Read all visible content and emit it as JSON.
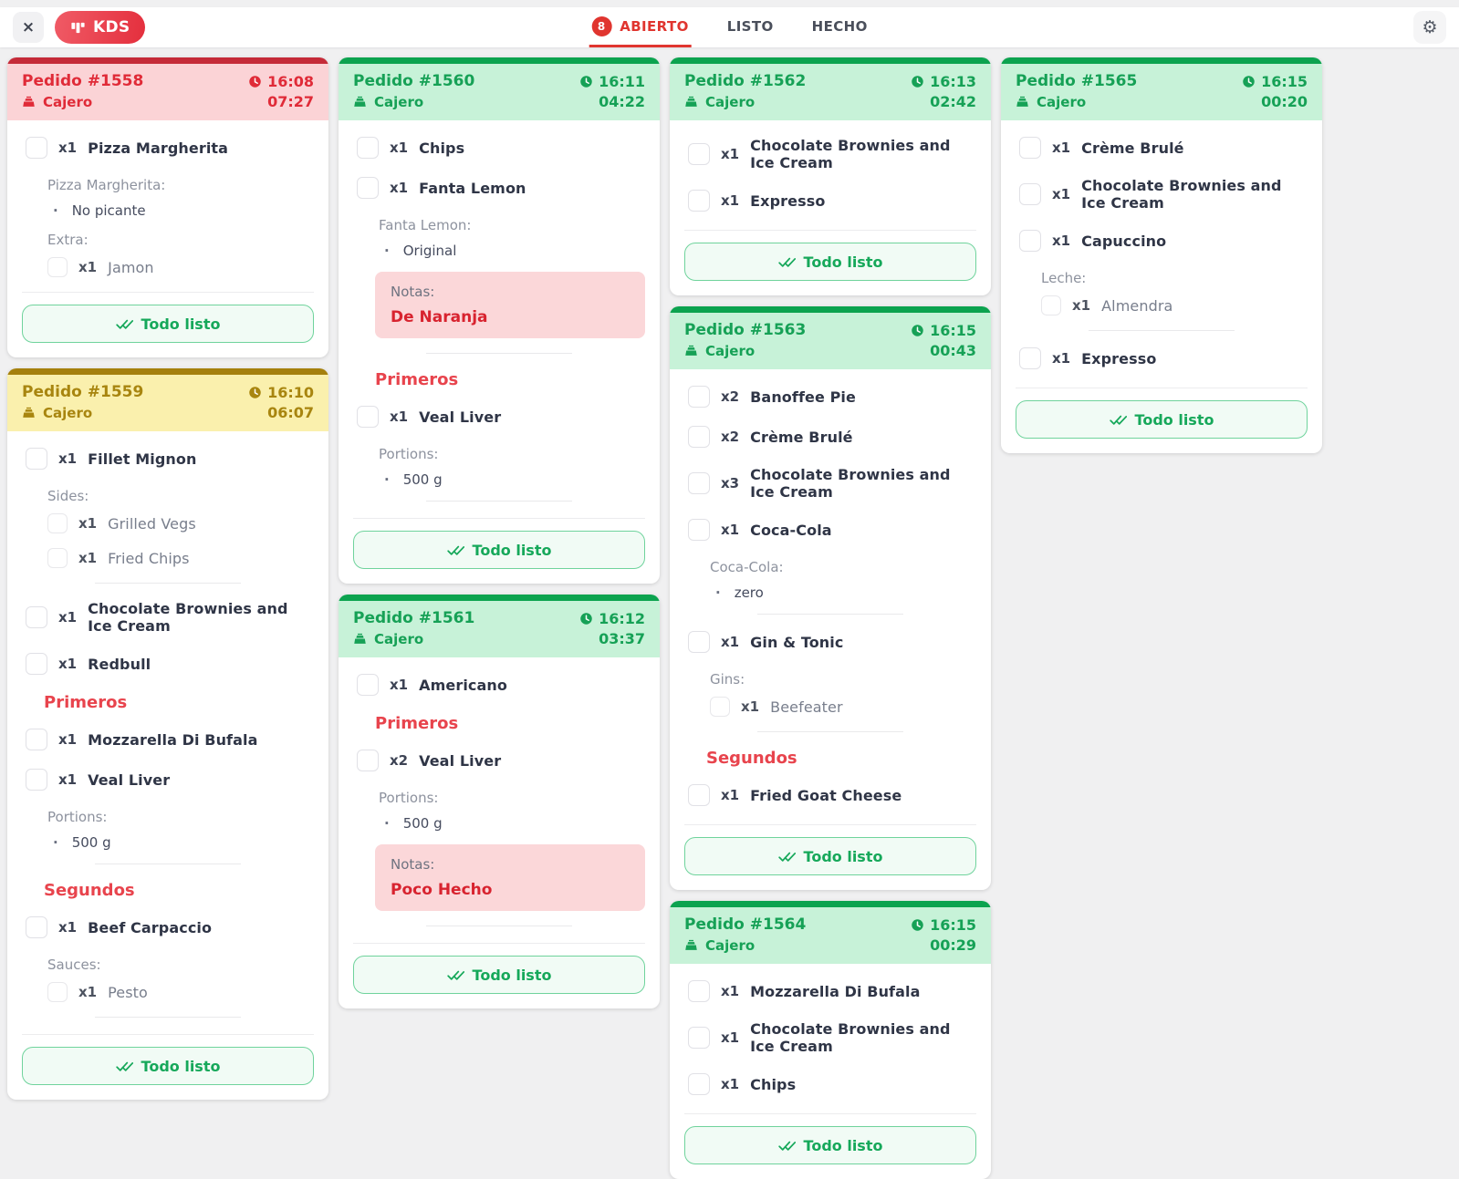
{
  "topbar": {
    "close_label": "×",
    "brand": "KDS",
    "settings_icon": "⚙",
    "tabs": [
      {
        "label": "ABIERTO",
        "badge": "8",
        "active": true
      },
      {
        "label": "LISTO"
      },
      {
        "label": "HECHO"
      }
    ]
  },
  "colors": {
    "brand_red": "#e73b48",
    "tab_active": "#e0352f",
    "heading_red": "#e8444d",
    "notes_bg": "#fbd7d9",
    "notes_text": "#d8232f",
    "ready_green": "#16a85a",
    "status": {
      "red": {
        "strip": "#c52b39",
        "bg": "#fbd3d6",
        "text": "#e02b38"
      },
      "yellow": {
        "strip": "#a5800d",
        "bg": "#faf0ad",
        "text": "#a8850f"
      },
      "green": {
        "strip": "#0ca34f",
        "bg": "#c7f2d8",
        "text": "#16a156"
      }
    }
  },
  "card_button_label": "Todo listo",
  "layout_columns": [
    [
      0,
      1
    ],
    [
      2,
      3
    ],
    [
      4,
      5,
      6
    ],
    [
      7
    ]
  ],
  "cards": [
    {
      "title": "Pedido #1558",
      "status": "red",
      "channel": "Cajero",
      "time": "16:08",
      "elapsed": "07:27",
      "blocks": [
        {
          "t": "item",
          "qty": "x1",
          "name": "Pizza Margherita"
        },
        {
          "t": "label",
          "text": "Pizza Margherita:"
        },
        {
          "t": "bullet",
          "text": "No picante"
        },
        {
          "t": "label",
          "text": "Extra:"
        },
        {
          "t": "sub",
          "qty": "x1",
          "name": "Jamon"
        }
      ]
    },
    {
      "title": "Pedido #1559",
      "status": "yellow",
      "channel": "Cajero",
      "time": "16:10",
      "elapsed": "06:07",
      "blocks": [
        {
          "t": "item",
          "qty": "x1",
          "name": "Fillet Mignon"
        },
        {
          "t": "label",
          "text": "Sides:"
        },
        {
          "t": "sub",
          "qty": "x1",
          "name": "Grilled Vegs"
        },
        {
          "t": "sub",
          "qty": "x1",
          "name": "Fried Chips"
        },
        {
          "t": "div"
        },
        {
          "t": "item",
          "qty": "x1",
          "name": "Chocolate Brownies and Ice Cream"
        },
        {
          "t": "item",
          "qty": "x1",
          "name": "Redbull"
        },
        {
          "t": "head",
          "text": "Primeros"
        },
        {
          "t": "item",
          "qty": "x1",
          "name": "Mozzarella Di Bufala"
        },
        {
          "t": "item",
          "qty": "x1",
          "name": "Veal Liver"
        },
        {
          "t": "label",
          "text": "Portions:"
        },
        {
          "t": "bullet",
          "text": "500 g"
        },
        {
          "t": "div"
        },
        {
          "t": "head",
          "text": "Segundos"
        },
        {
          "t": "item",
          "qty": "x1",
          "name": "Beef Carpaccio"
        },
        {
          "t": "label",
          "text": "Sauces:"
        },
        {
          "t": "sub",
          "qty": "x1",
          "name": "Pesto"
        },
        {
          "t": "div"
        }
      ]
    },
    {
      "title": "Pedido #1560",
      "status": "green",
      "channel": "Cajero",
      "time": "16:11",
      "elapsed": "04:22",
      "blocks": [
        {
          "t": "item",
          "qty": "x1",
          "name": "Chips"
        },
        {
          "t": "item",
          "qty": "x1",
          "name": "Fanta Lemon"
        },
        {
          "t": "label",
          "text": "Fanta Lemon:"
        },
        {
          "t": "bullet",
          "text": "Original"
        },
        {
          "t": "notes",
          "label": "Notas:",
          "text": "De Naranja"
        },
        {
          "t": "div"
        },
        {
          "t": "head",
          "text": "Primeros"
        },
        {
          "t": "item",
          "qty": "x1",
          "name": "Veal Liver"
        },
        {
          "t": "label",
          "text": "Portions:"
        },
        {
          "t": "bullet",
          "text": "500 g"
        },
        {
          "t": "div"
        }
      ]
    },
    {
      "title": "Pedido #1561",
      "status": "green",
      "channel": "Cajero",
      "time": "16:12",
      "elapsed": "03:37",
      "blocks": [
        {
          "t": "item",
          "qty": "x1",
          "name": "Americano"
        },
        {
          "t": "head",
          "text": "Primeros"
        },
        {
          "t": "item",
          "qty": "x2",
          "name": "Veal Liver"
        },
        {
          "t": "label",
          "text": "Portions:"
        },
        {
          "t": "bullet",
          "text": "500 g"
        },
        {
          "t": "notes",
          "label": "Notas:",
          "text": "Poco Hecho"
        },
        {
          "t": "div"
        }
      ]
    },
    {
      "title": "Pedido #1562",
      "status": "green",
      "channel": "Cajero",
      "time": "16:13",
      "elapsed": "02:42",
      "blocks": [
        {
          "t": "item",
          "qty": "x1",
          "name": "Chocolate Brownies and Ice Cream"
        },
        {
          "t": "item",
          "qty": "x1",
          "name": "Expresso"
        }
      ]
    },
    {
      "title": "Pedido #1563",
      "status": "green",
      "channel": "Cajero",
      "time": "16:15",
      "elapsed": "00:43",
      "blocks": [
        {
          "t": "item",
          "qty": "x2",
          "name": "Banoffee Pie"
        },
        {
          "t": "item",
          "qty": "x2",
          "name": "Crème Brulé"
        },
        {
          "t": "item",
          "qty": "x3",
          "name": "Chocolate Brownies and Ice Cream"
        },
        {
          "t": "item",
          "qty": "x1",
          "name": "Coca-Cola"
        },
        {
          "t": "label",
          "text": "Coca-Cola:"
        },
        {
          "t": "bullet",
          "text": "zero"
        },
        {
          "t": "div"
        },
        {
          "t": "item",
          "qty": "x1",
          "name": "Gin & Tonic"
        },
        {
          "t": "label",
          "text": "Gins:"
        },
        {
          "t": "sub",
          "qty": "x1",
          "name": "Beefeater"
        },
        {
          "t": "div"
        },
        {
          "t": "head",
          "text": "Segundos"
        },
        {
          "t": "item",
          "qty": "x1",
          "name": "Fried Goat Cheese"
        }
      ]
    },
    {
      "title": "Pedido #1564",
      "status": "green",
      "channel": "Cajero",
      "time": "16:15",
      "elapsed": "00:29",
      "blocks": [
        {
          "t": "item",
          "qty": "x1",
          "name": "Mozzarella Di Bufala"
        },
        {
          "t": "item",
          "qty": "x1",
          "name": "Chocolate Brownies and Ice Cream"
        },
        {
          "t": "item",
          "qty": "x1",
          "name": "Chips"
        }
      ]
    },
    {
      "title": "Pedido #1565",
      "status": "green",
      "channel": "Cajero",
      "time": "16:15",
      "elapsed": "00:20",
      "blocks": [
        {
          "t": "item",
          "qty": "x1",
          "name": "Crème Brulé"
        },
        {
          "t": "item",
          "qty": "x1",
          "name": "Chocolate Brownies and Ice Cream"
        },
        {
          "t": "item",
          "qty": "x1",
          "name": "Capuccino"
        },
        {
          "t": "label",
          "text": "Leche:"
        },
        {
          "t": "sub",
          "qty": "x1",
          "name": "Almendra"
        },
        {
          "t": "div"
        },
        {
          "t": "item",
          "qty": "x1",
          "name": "Expresso"
        }
      ]
    }
  ]
}
